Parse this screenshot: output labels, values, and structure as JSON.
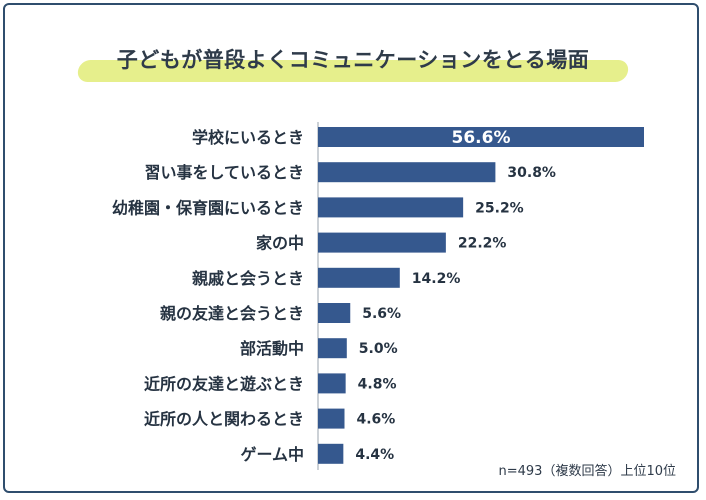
{
  "chart_data": {
    "type": "bar",
    "orientation": "horizontal",
    "title": "子どもが普段よくコミュニケーションをとる場面",
    "categories": [
      "学校にいるとき",
      "習い事をしているとき",
      "幼稚園・保育園にいるとき",
      "家の中",
      "親戚と会うとき",
      "親の友達と会うとき",
      "部活動中",
      "近所の友達と遊ぶとき",
      "近所の人と関わるとき",
      "ゲーム中"
    ],
    "values": [
      56.6,
      30.8,
      25.2,
      22.2,
      14.2,
      5.6,
      5.0,
      4.8,
      4.6,
      4.4
    ],
    "value_labels": [
      "56.6%",
      "30.8%",
      "25.2%",
      "22.2%",
      "14.2%",
      "5.6%",
      "5.0%",
      "4.8%",
      "4.6%",
      "4.4%"
    ],
    "xlim": [
      0,
      60
    ],
    "footnote": "n=493（複数回答）上位10位",
    "bar_color": "#35588e",
    "grid": false
  }
}
